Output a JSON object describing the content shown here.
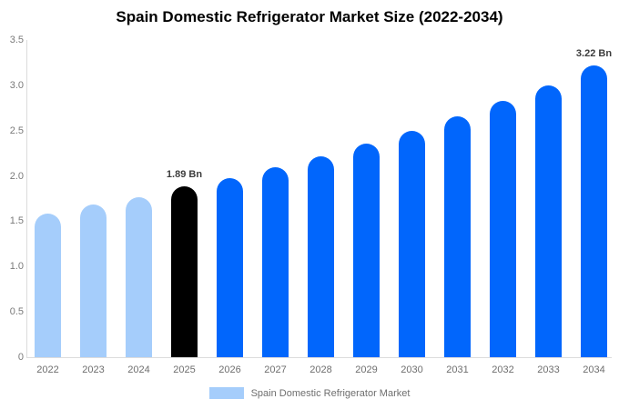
{
  "chart_data": {
    "type": "bar",
    "title": "Spain Domestic Refrigerator Market Size (2022-2034)",
    "xlabel": "",
    "ylabel": "",
    "unit": "Bn",
    "categories": [
      "2022",
      "2023",
      "2024",
      "2025",
      "2026",
      "2027",
      "2028",
      "2029",
      "2030",
      "2031",
      "2032",
      "2033",
      "2034"
    ],
    "values": [
      1.58,
      1.68,
      1.77,
      1.89,
      1.98,
      2.1,
      2.22,
      2.36,
      2.5,
      2.66,
      2.83,
      3.0,
      3.22
    ],
    "bar_colors": [
      "#a5cdfb",
      "#a5cdfb",
      "#a5cdfb",
      "#000000",
      "#0166fc",
      "#0166fc",
      "#0166fc",
      "#0166fc",
      "#0166fc",
      "#0166fc",
      "#0166fc",
      "#0166fc",
      "#0166fc"
    ],
    "ylim": [
      0,
      3.5
    ],
    "yticks": [
      "3.5",
      "3.0",
      "2.5",
      "2.0",
      "1.5",
      "1.0",
      "0.5",
      "0"
    ],
    "grid": false,
    "annotations": [
      {
        "category": "2025",
        "text": "1.89 Bn"
      },
      {
        "category": "2034",
        "text": "3.22 Bn"
      }
    ],
    "legend_position": "bottom",
    "legend": [
      {
        "label": "Spain Domestic Refrigerator Market",
        "color": "#a5cdfb"
      }
    ]
  },
  "colors": {
    "background": "#ffffff",
    "axis_line": "#dcdcdc",
    "tick_text": "#7a7a7a",
    "annotation_text": "#3c3c3c",
    "highlight_bar": "#000000",
    "historic_bar": "#a5cdfb",
    "forecast_bar": "#0166fc"
  }
}
